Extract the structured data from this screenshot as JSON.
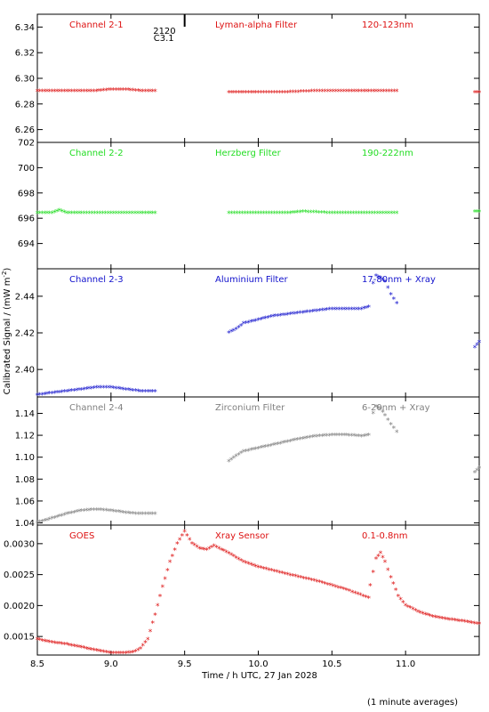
{
  "figure": {
    "ylabel": "Calibrated Signal / (mW m",
    "ylabel_sup": "-2",
    "ylabel_close": ")",
    "xlabel": "Time / h UTC, 27 Jan 2028",
    "footnote": "(1 minute averages)",
    "event_marker_x": 9.5,
    "event_label_1": "2120",
    "event_label_2": "C3.1"
  },
  "chart_data": [
    {
      "type": "scatter",
      "label_left": "Channel 2-1",
      "label_mid": "Lyman-alpha Filter",
      "label_right": "120-123nm",
      "color": "#dd1111",
      "xlim": [
        8.5,
        11.5
      ],
      "ylim": [
        6.25,
        6.35
      ],
      "yticks": [
        6.26,
        6.28,
        6.3,
        6.32,
        6.34
      ],
      "ytick_labels": [
        "6.26",
        "6.28",
        "6.30",
        "6.32",
        "6.34"
      ],
      "series": [
        {
          "x": [
            8.5,
            8.6,
            8.7,
            8.8,
            8.9,
            9.0,
            9.05,
            9.1,
            9.2,
            9.3
          ],
          "y": [
            6.29,
            6.29,
            6.29,
            6.29,
            6.29,
            6.291,
            6.291,
            6.291,
            6.29,
            6.29
          ]
        },
        {
          "x": [
            9.8,
            9.9,
            10.0,
            10.2,
            10.4,
            10.6,
            10.7,
            10.8,
            10.94
          ],
          "y": [
            6.289,
            6.289,
            6.289,
            6.289,
            6.29,
            6.29,
            6.29,
            6.29,
            6.29
          ]
        },
        {
          "x": [
            11.47,
            11.5
          ],
          "y": [
            6.289,
            6.289
          ]
        }
      ]
    },
    {
      "type": "scatter",
      "label_left": "Channel 2-2",
      "label_mid": "Herzberg Filter",
      "label_right": "190-222nm",
      "color": "#22dd22",
      "xlim": [
        8.5,
        11.5
      ],
      "ylim": [
        692,
        702
      ],
      "yticks": [
        694,
        696,
        698,
        700,
        702
      ],
      "ytick_labels": [
        "694",
        "696",
        "698",
        "700",
        "702"
      ],
      "series": [
        {
          "x": [
            8.5,
            8.6,
            8.65,
            8.7,
            8.8,
            9.0,
            9.2,
            9.3
          ],
          "y": [
            696.4,
            696.4,
            696.6,
            696.4,
            696.4,
            696.4,
            696.4,
            696.4
          ]
        },
        {
          "x": [
            9.8,
            10.0,
            10.2,
            10.3,
            10.5,
            10.7,
            10.94
          ],
          "y": [
            696.4,
            696.4,
            696.4,
            696.5,
            696.4,
            696.4,
            696.4
          ]
        },
        {
          "x": [
            11.47,
            11.5
          ],
          "y": [
            696.5,
            696.5
          ]
        }
      ]
    },
    {
      "type": "scatter",
      "label_left": "Channel 2-3",
      "label_mid": "Aluminium Filter",
      "label_right": "17-80nm + Xray",
      "color": "#1111cc",
      "xlim": [
        8.5,
        11.5
      ],
      "ylim": [
        2.385,
        2.455
      ],
      "yticks": [
        2.4,
        2.42,
        2.44
      ],
      "ytick_labels": [
        "2.40",
        "2.42",
        "2.44"
      ],
      "series": [
        {
          "x": [
            8.5,
            8.6,
            8.7,
            8.8,
            8.9,
            9.0,
            9.1,
            9.2,
            9.3
          ],
          "y": [
            2.386,
            2.387,
            2.388,
            2.389,
            2.39,
            2.39,
            2.389,
            2.388,
            2.388
          ]
        },
        {
          "x": [
            9.8,
            9.85,
            9.9,
            10.0,
            10.1,
            10.2,
            10.3,
            10.4,
            10.5,
            10.6,
            10.7,
            10.75
          ],
          "y": [
            2.42,
            2.422,
            2.425,
            2.427,
            2.429,
            2.43,
            2.431,
            2.432,
            2.433,
            2.433,
            2.433,
            2.434
          ]
        },
        {
          "x": [
            10.78,
            10.8,
            10.83,
            10.86,
            10.9,
            10.94
          ],
          "y": [
            2.447,
            2.451,
            2.45,
            2.448,
            2.441,
            2.436
          ]
        },
        {
          "x": [
            11.47,
            11.5
          ],
          "y": [
            2.412,
            2.415
          ]
        }
      ]
    },
    {
      "type": "scatter",
      "label_left": "Channel 2-4",
      "label_mid": "Zirconium Filter",
      "label_right": "6-20nm + Xray",
      "color": "#808080",
      "xlim": [
        8.5,
        11.5
      ],
      "ylim": [
        1.038,
        1.155
      ],
      "yticks": [
        1.04,
        1.06,
        1.08,
        1.1,
        1.12,
        1.14
      ],
      "ytick_labels": [
        "1.04",
        "1.06",
        "1.08",
        "1.10",
        "1.12",
        "1.14"
      ],
      "series": [
        {
          "x": [
            8.5,
            8.6,
            8.7,
            8.8,
            8.9,
            9.0,
            9.1,
            9.2,
            9.3
          ],
          "y": [
            1.04,
            1.044,
            1.048,
            1.051,
            1.052,
            1.051,
            1.049,
            1.048,
            1.048
          ]
        },
        {
          "x": [
            9.8,
            9.85,
            9.9,
            10.0,
            10.1,
            10.2,
            10.3,
            10.4,
            10.5,
            10.6,
            10.7,
            10.75
          ],
          "y": [
            1.096,
            1.101,
            1.105,
            1.108,
            1.111,
            1.114,
            1.117,
            1.119,
            1.12,
            1.12,
            1.119,
            1.12
          ]
        },
        {
          "x": [
            10.78,
            10.8,
            10.83,
            10.86,
            10.9,
            10.94
          ],
          "y": [
            1.14,
            1.146,
            1.144,
            1.138,
            1.13,
            1.123
          ]
        },
        {
          "x": [
            11.47,
            11.5
          ],
          "y": [
            1.086,
            1.09
          ]
        }
      ]
    },
    {
      "type": "scatter",
      "label_left": "GOES",
      "label_mid": "Xray Sensor",
      "label_right": "0.1-0.8nm",
      "color": "#dd1111",
      "xlim": [
        8.5,
        11.5
      ],
      "ylim": [
        0.0012,
        0.0033
      ],
      "yticks": [
        0.0015,
        0.002,
        0.0025,
        0.003
      ],
      "ytick_labels": [
        "0.0015",
        "0.0020",
        "0.0025",
        "0.0030"
      ],
      "series": [
        {
          "x": [
            8.5,
            8.6,
            8.7,
            8.8,
            8.9,
            9.0,
            9.1,
            9.15,
            9.2,
            9.25,
            9.3,
            9.35,
            9.4,
            9.45,
            9.5,
            9.55,
            9.6,
            9.65,
            9.7,
            9.75,
            9.8,
            9.9,
            10.0,
            10.2,
            10.4,
            10.6,
            10.75
          ],
          "y": [
            0.00145,
            0.0014,
            0.00137,
            0.00132,
            0.00127,
            0.00123,
            0.00123,
            0.00124,
            0.0013,
            0.00145,
            0.00185,
            0.0023,
            0.0027,
            0.003,
            0.00319,
            0.003,
            0.00292,
            0.0029,
            0.00296,
            0.0029,
            0.00284,
            0.0027,
            0.00262,
            0.0025,
            0.00239,
            0.00225,
            0.00212
          ]
        },
        {
          "x": [
            10.76,
            10.8,
            10.83,
            10.86,
            10.9,
            10.95,
            11.0,
            11.1,
            11.2,
            11.3,
            11.4,
            11.5
          ],
          "y": [
            0.00232,
            0.00275,
            0.00285,
            0.0027,
            0.00245,
            0.00215,
            0.002,
            0.00188,
            0.00181,
            0.00177,
            0.00174,
            0.0017
          ]
        }
      ]
    }
  ],
  "xaxis": {
    "xlim": [
      8.5,
      11.5
    ],
    "ticks": [
      8.5,
      9.0,
      9.5,
      10.0,
      10.5,
      11.0
    ],
    "tick_labels": [
      "8.5",
      "9.0",
      "9.5",
      "10.0",
      "10.5",
      "11.0"
    ]
  }
}
